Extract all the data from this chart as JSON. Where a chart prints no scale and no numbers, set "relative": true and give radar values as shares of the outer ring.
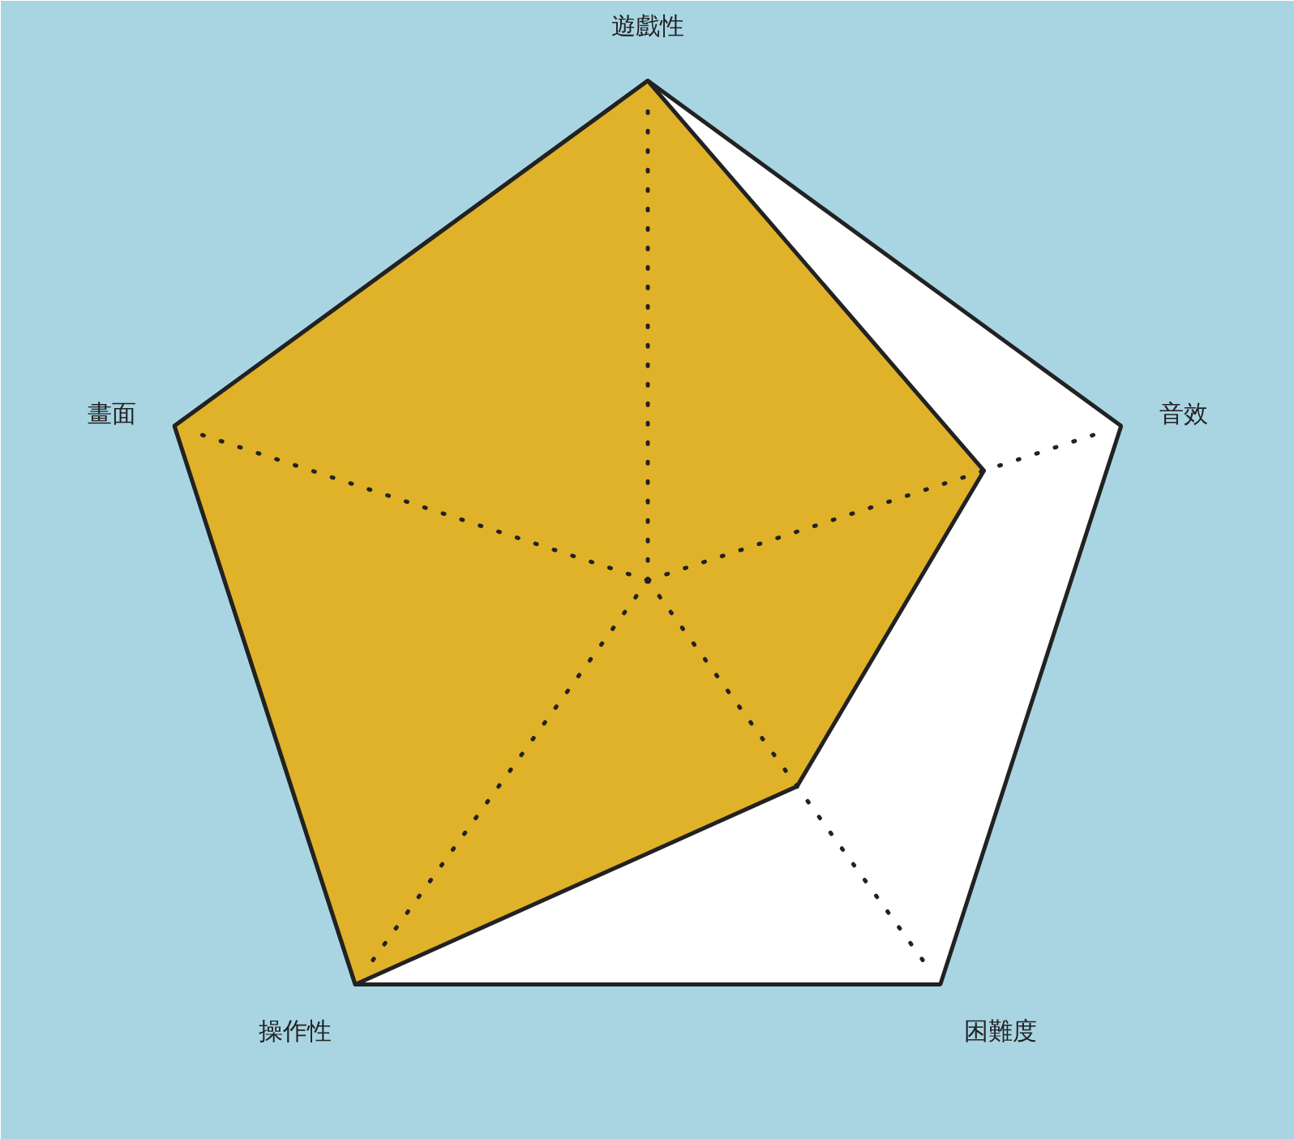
{
  "chart_data": {
    "type": "radar",
    "relative": true,
    "categories": [
      "遊戲性",
      "音效",
      "困難度",
      "操作性",
      "畫面"
    ],
    "series": [
      {
        "color": "#e0b22a",
        "values": [
          1,
          0.71,
          0.51,
          1,
          1
        ]
      }
    ],
    "grid": true
  }
}
